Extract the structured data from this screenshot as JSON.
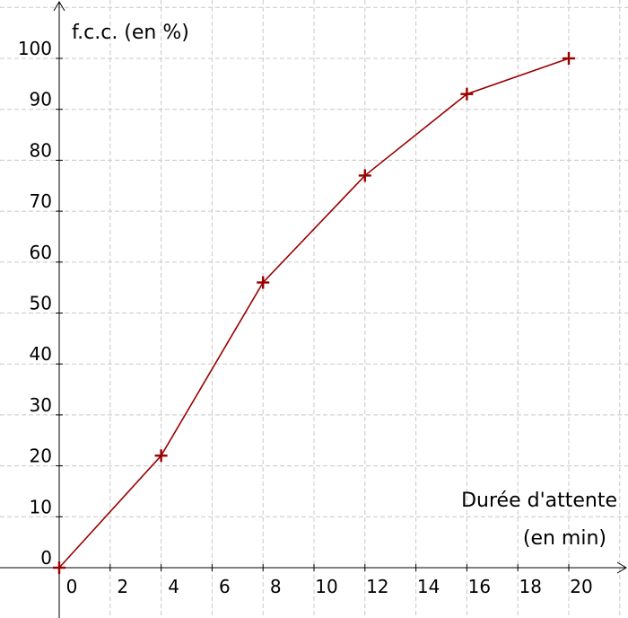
{
  "chart_data": {
    "type": "line",
    "title": "",
    "ylabel": "f.c.c. (en %)",
    "xlabel_line1": "Durée d'attente",
    "xlabel_line2": "(en min)",
    "x": [
      0,
      4,
      8,
      12,
      16,
      20
    ],
    "series": [
      {
        "values": [
          0,
          22,
          56,
          77,
          93,
          100
        ],
        "color": "#990000",
        "marker": "plus"
      }
    ],
    "xticks": [
      "0",
      "2",
      "4",
      "6",
      "8",
      "10",
      "12",
      "14",
      "16",
      "18",
      "20"
    ],
    "yticks": [
      "0",
      "10",
      "20",
      "30",
      "40",
      "50",
      "60",
      "70",
      "80",
      "90",
      "100"
    ],
    "xlim": [
      -1,
      22
    ],
    "ylim": [
      -10,
      110
    ],
    "grid": true,
    "grid_style": "dashed"
  }
}
